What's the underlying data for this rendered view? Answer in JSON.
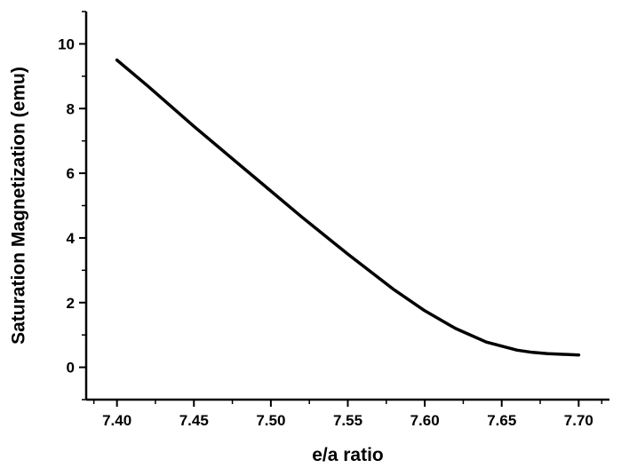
{
  "chart_data": {
    "type": "line",
    "title": "",
    "xlabel": "e/a ratio",
    "ylabel": "Saturation Magnetization (emu)",
    "xlim": [
      7.38,
      7.72
    ],
    "ylim": [
      -1.0,
      11.0
    ],
    "xticks": [
      7.4,
      7.45,
      7.5,
      7.55,
      7.6,
      7.65,
      7.7
    ],
    "xtick_labels": [
      "7.40",
      "7.45",
      "7.50",
      "7.55",
      "7.60",
      "7.65",
      "7.70"
    ],
    "yticks": [
      0,
      2,
      4,
      6,
      8,
      10
    ],
    "ytick_labels": [
      "0",
      "2",
      "4",
      "6",
      "8",
      "10"
    ],
    "grid": false,
    "legend": "none",
    "line_color": "#000000",
    "series": [
      {
        "x": [
          7.4,
          7.42,
          7.45,
          7.48,
          7.5,
          7.52,
          7.55,
          7.58,
          7.6,
          7.62,
          7.64,
          7.66,
          7.67,
          7.68,
          7.69,
          7.7
        ],
        "y": [
          9.5,
          8.7,
          7.45,
          6.25,
          5.45,
          4.65,
          3.5,
          2.4,
          1.75,
          1.2,
          0.78,
          0.53,
          0.46,
          0.42,
          0.4,
          0.38
        ]
      }
    ]
  }
}
